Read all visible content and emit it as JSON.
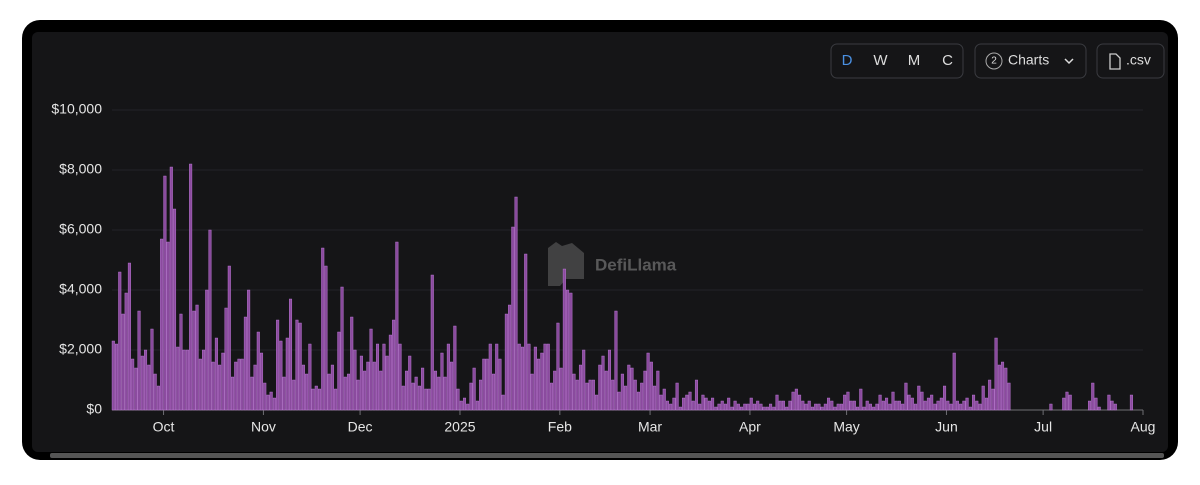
{
  "controls": {
    "periods": [
      "D",
      "W",
      "M",
      "C"
    ],
    "charts_count": "2",
    "charts_label": "Charts",
    "csv_label": ".csv"
  },
  "watermark": "DefiLlama",
  "chart_data": {
    "type": "bar",
    "color": "#8a4b9e",
    "edge_color": "#c77fe0",
    "grid": true,
    "ylim": [
      0,
      10000
    ],
    "yticks": [
      {
        "value": 0,
        "label": "$0"
      },
      {
        "value": 2000,
        "label": "$2,000"
      },
      {
        "value": 4000,
        "label": "$4,000"
      },
      {
        "value": 6000,
        "label": "$6,000"
      },
      {
        "value": 8000,
        "label": "$8,000"
      },
      {
        "value": 10000,
        "label": "$10,000"
      }
    ],
    "xlim": [
      0,
      320
    ],
    "xticks": [
      {
        "value": 16,
        "label": "Oct"
      },
      {
        "value": 47,
        "label": "Nov"
      },
      {
        "value": 77,
        "label": "Dec"
      },
      {
        "value": 108,
        "label": "2025"
      },
      {
        "value": 139,
        "label": "Feb"
      },
      {
        "value": 167,
        "label": "Mar"
      },
      {
        "value": 198,
        "label": "Apr"
      },
      {
        "value": 228,
        "label": "May"
      },
      {
        "value": 259,
        "label": "Jun"
      },
      {
        "value": 289,
        "label": "Jul"
      },
      {
        "value": 320,
        "label": "Aug"
      }
    ],
    "values": [
      2300,
      2200,
      4600,
      3200,
      3900,
      4900,
      1700,
      1400,
      3300,
      1800,
      2000,
      1500,
      2700,
      1200,
      800,
      5700,
      7800,
      5600,
      8100,
      6700,
      2100,
      3200,
      2000,
      2000,
      8200,
      3300,
      3500,
      1700,
      2000,
      4000,
      6000,
      1600,
      2400,
      1500,
      1900,
      3400,
      4800,
      1100,
      1600,
      1700,
      1700,
      3100,
      4000,
      1100,
      1500,
      2600,
      1900,
      900,
      500,
      600,
      400,
      3000,
      2300,
      1100,
      2400,
      3700,
      1000,
      3000,
      2900,
      1500,
      1200,
      2200,
      700,
      800,
      700,
      5400,
      4800,
      1200,
      1500,
      700,
      2600,
      4100,
      1100,
      1200,
      3100,
      2000,
      1000,
      1800,
      1300,
      1600,
      2700,
      1600,
      2200,
      1300,
      2200,
      1800,
      2500,
      3000,
      5600,
      2200,
      800,
      1300,
      1800,
      900,
      1100,
      800,
      1400,
      700,
      700,
      4500,
      1300,
      1100,
      1900,
      1100,
      2200,
      1600,
      2800,
      700,
      300,
      400,
      200,
      900,
      1400,
      300,
      1000,
      1700,
      1700,
      2200,
      1200,
      2200,
      1700,
      500,
      3200,
      3500,
      6100,
      7100,
      2200,
      2100,
      5200,
      2200,
      1200,
      2100,
      1700,
      1900,
      2200,
      2200,
      900,
      1300,
      2900,
      1400,
      4700,
      4000,
      3900,
      1200,
      1000,
      1500,
      2000,
      900,
      1000,
      1000,
      500,
      1500,
      1800,
      1300,
      2000,
      1000,
      3300,
      600,
      1200,
      800,
      1500,
      1400,
      1000,
      600,
      900,
      1300,
      1900,
      1600,
      800,
      1300,
      500,
      700,
      300,
      200,
      400,
      900,
      100,
      400,
      500,
      600,
      300,
      1000,
      200,
      500,
      400,
      300,
      400,
      100,
      200,
      300,
      200,
      400,
      100,
      300,
      200,
      100,
      200,
      200,
      400,
      200,
      300,
      200,
      100,
      100,
      200,
      100,
      500,
      300,
      300,
      100,
      300,
      600,
      700,
      500,
      300,
      200,
      300,
      100,
      200,
      200,
      100,
      200,
      400,
      300,
      100,
      200,
      200,
      500,
      600,
      300,
      300,
      100,
      700,
      100,
      300,
      200,
      100,
      200,
      500,
      300,
      400,
      200,
      600,
      300,
      300,
      200,
      900,
      500,
      400,
      200,
      800,
      600,
      300,
      400,
      500,
      200,
      300,
      400,
      800,
      300,
      200,
      1900,
      300,
      200,
      300,
      400,
      100,
      500,
      300,
      200,
      800,
      400,
      1000,
      700,
      2400,
      1500,
      1600,
      1400,
      900,
      0,
      0,
      0,
      0,
      0,
      0,
      0,
      0,
      0,
      0,
      0,
      0,
      200,
      0,
      0,
      0,
      400,
      600,
      500,
      0,
      0,
      0,
      0,
      0,
      300,
      900,
      400,
      100,
      0,
      0,
      500,
      300,
      200,
      0,
      0,
      0,
      0,
      500
    ]
  }
}
